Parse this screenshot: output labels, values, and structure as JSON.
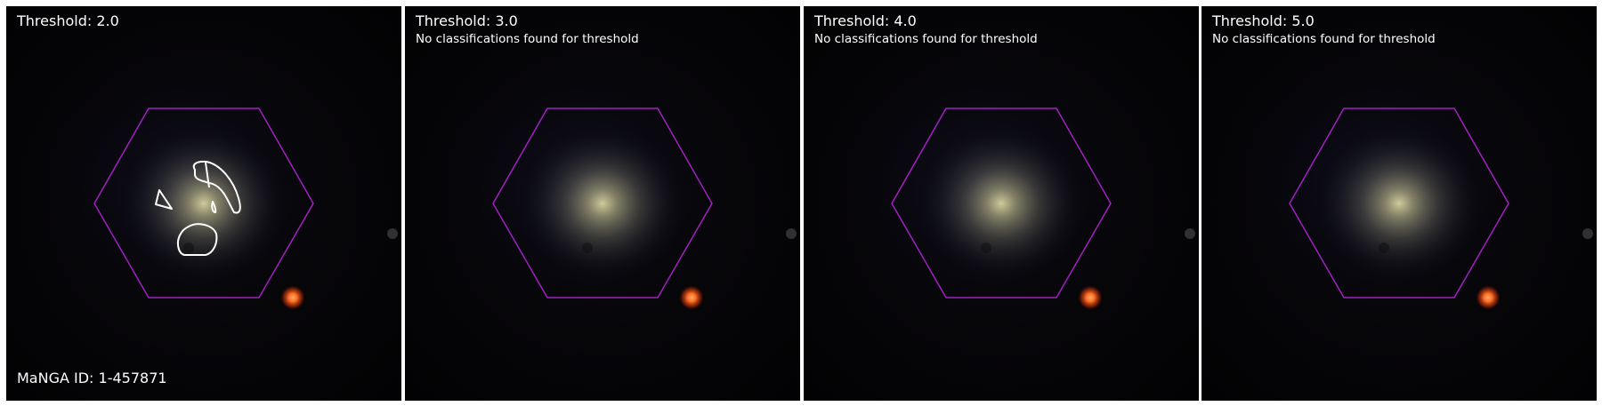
{
  "colors": {
    "hexagon": "#a020c0",
    "contour": "#ffffff",
    "text": "#ffffff",
    "background": "#ffffff"
  },
  "panels": [
    {
      "title": "Threshold: 2.0",
      "note": "",
      "contours": true
    },
    {
      "title": "Threshold: 3.0",
      "note": "No classifications found for threshold",
      "contours": false
    },
    {
      "title": "Threshold: 4.0",
      "note": "No classifications found for threshold",
      "contours": false
    },
    {
      "title": "Threshold: 5.0",
      "note": "No classifications found for threshold",
      "contours": false
    }
  ],
  "manga_id": "MaNGA ID: 1-457871"
}
